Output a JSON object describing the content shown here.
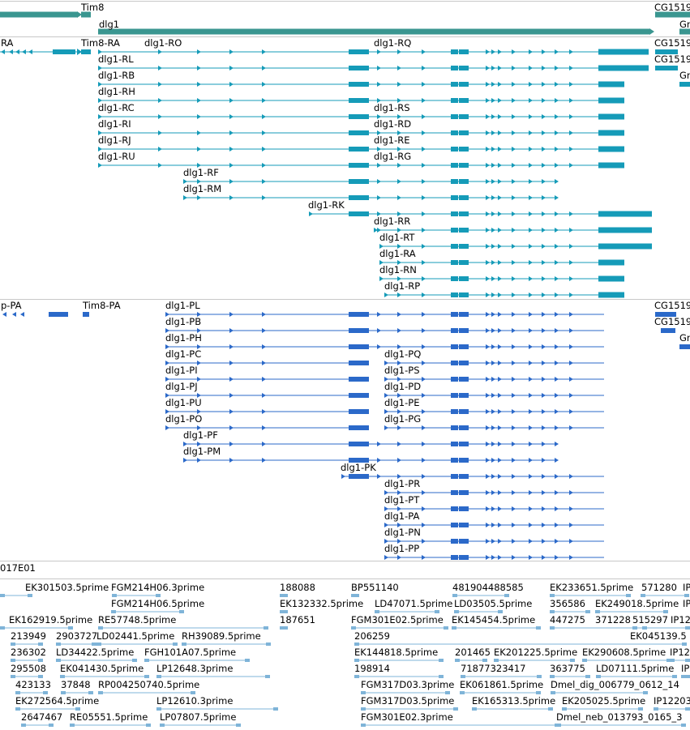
{
  "tracks": {
    "gene_track": {
      "colors": {
        "gene": "#3a9690"
      },
      "features": [
        "Tim8",
        "dlg1",
        "CG1519",
        "Gr"
      ]
    },
    "transcript_track": {
      "colors": {
        "transcript": "#159bb8"
      },
      "features": [
        "RA",
        "Tim8-RA",
        "dlg1-RO",
        "dlg1-RQ",
        "CG1519",
        "dlg1-RL",
        "CG1519",
        "Gr",
        "dlg1-RB",
        "dlg1-RH",
        "dlg1-RC",
        "dlg1-RS",
        "dlg1-RI",
        "dlg1-RD",
        "dlg1-RJ",
        "dlg1-RE",
        "dlg1-RU",
        "dlg1-RG",
        "dlg1-RF",
        "dlg1-RM",
        "dlg1-RK",
        "dlg1-RR",
        "dlg1-RT",
        "dlg1-RA",
        "dlg1-RN",
        "dlg1-RP"
      ]
    },
    "protein_track": {
      "colors": {
        "protein": "#2b69c9"
      },
      "features": [
        "p-PA",
        "Tim8-PA",
        "dlg1-PL",
        "CG1519",
        "dlg1-PB",
        "CG1519",
        "dlg1-PH",
        "Gr",
        "dlg1-PC",
        "dlg1-PQ",
        "dlg1-PI",
        "dlg1-PS",
        "dlg1-PJ",
        "dlg1-PD",
        "dlg1-PU",
        "dlg1-PE",
        "dlg1-PO",
        "dlg1-PG",
        "dlg1-PF",
        "dlg1-PM",
        "dlg1-PK",
        "dlg1-PR",
        "dlg1-PT",
        "dlg1-PA",
        "dlg1-PN",
        "dlg1-PP"
      ]
    },
    "clone_track": {
      "label": "017E01"
    },
    "est_track": {
      "colors": {
        "est": "#7fb4d8"
      },
      "features": [
        "EK301503.5prime",
        "FGM214H06.3prime",
        "188088",
        "BP551140",
        "481904488585",
        "EK233651.5prime",
        "571280",
        "IP1",
        "FGM214H06.5prime",
        "EK132332.5prime",
        "LD47071.5prime",
        "LD03505.5prime",
        "356586",
        "EK249018.5prime",
        "IP1",
        "EK162919.5prime",
        "RE57748.5prime",
        "187651",
        "FGM301E02.5prime",
        "EK145454.5prime",
        "447275",
        "371228",
        "515297",
        "IP12",
        "213949",
        "2903727",
        "LD02441.5prime",
        "RH39089.5prime",
        "206259",
        "EK045139.5",
        "236302",
        "LD34422.5prime",
        "FGH101A07.5prime",
        "EK144818.5prime",
        "201465",
        "EK201225.5prime",
        "EK290608.5prime",
        "IP12",
        "295508",
        "EK041430.5prime",
        "LP12648.3prime",
        "198914",
        "71877323417",
        "363775",
        "LD07111.5prime",
        "IP",
        "423133",
        "37848",
        "RP004250740.5prime",
        "FGM317D03.3prime",
        "EK061861.5prime",
        "Dmel_dig_006779_0612_14",
        "EK272564.5prime",
        "LP12610.3prime",
        "FGM317D03.5prime",
        "EK165313.5prime",
        "EK205025.5prime",
        "IP12203",
        "2647467",
        "RE05551.5prime",
        "LP07807.5prime",
        "FGM301E02.3prime",
        "Dmel_neb_013793_0165_3"
      ]
    }
  }
}
